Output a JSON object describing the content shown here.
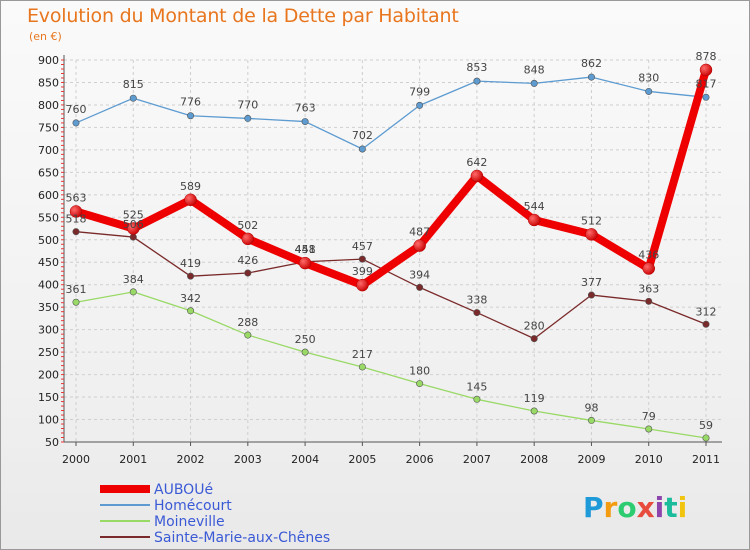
{
  "chart_data": {
    "type": "line",
    "title": "Evolution du Montant de la Dette par Habitant",
    "subtitle": "(en €)",
    "x": [
      "2000",
      "2001",
      "2002",
      "2003",
      "2004",
      "2005",
      "2006",
      "2007",
      "2008",
      "2009",
      "2010",
      "2011"
    ],
    "ylim": [
      50,
      900
    ],
    "yticks": [
      50,
      100,
      150,
      200,
      250,
      300,
      350,
      400,
      450,
      500,
      550,
      600,
      650,
      700,
      750,
      800,
      850,
      900
    ],
    "grid": true,
    "legend_position": "bottom-left",
    "series": [
      {
        "name": "AUBOUé",
        "color": "#ee0000",
        "values": [
          563,
          525,
          589,
          502,
          448,
          399,
          487,
          642,
          544,
          512,
          436,
          878
        ]
      },
      {
        "name": "Homécourt",
        "color": "#5d9bd0",
        "values": [
          760,
          815,
          776,
          770,
          763,
          702,
          799,
          853,
          848,
          862,
          830,
          817
        ]
      },
      {
        "name": "Moineville",
        "color": "#99d966",
        "values": [
          361,
          384,
          342,
          288,
          250,
          217,
          180,
          145,
          119,
          98,
          79,
          59
        ]
      },
      {
        "name": "Sainte-Marie-aux-Chênes",
        "color": "#7a2a2a",
        "values": [
          518,
          506,
          419,
          426,
          451,
          457,
          394,
          338,
          280,
          377,
          363,
          312
        ]
      }
    ]
  },
  "logo_text": "Proxiti"
}
